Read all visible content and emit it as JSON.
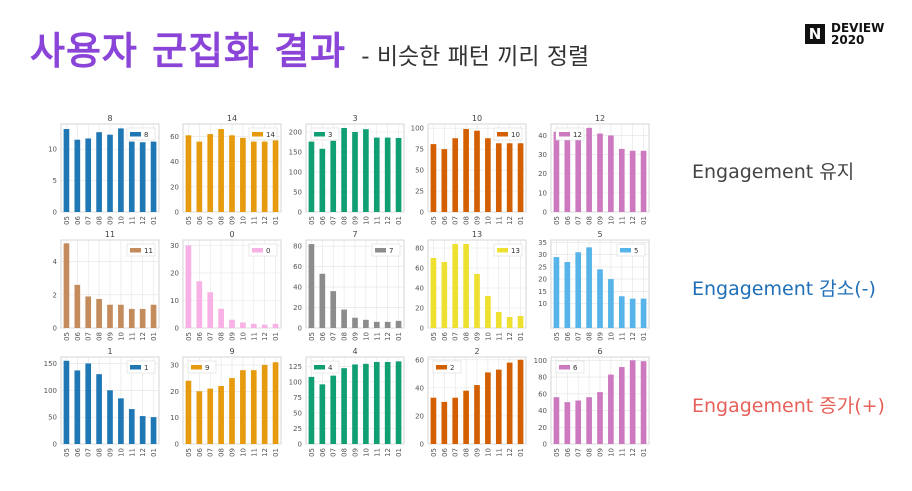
{
  "slide": {
    "title": "사용자 군집화 결과",
    "subtitle": "- 비슷한 패턴 끼리 정렬",
    "logo": {
      "mark": "N",
      "line1": "DEVIEW",
      "line2": "2020"
    },
    "row_labels": [
      {
        "text": "Engagement 유지",
        "color": "#444444"
      },
      {
        "text": "Engagement 감소(-)",
        "color": "#1f6fb8"
      },
      {
        "text": "Engagement 증가(+)",
        "color": "#e8605a"
      }
    ]
  },
  "chart_data": [
    {
      "type": "bar",
      "title": "8",
      "legend": "8",
      "color": "#1f77b4",
      "categories": [
        "05",
        "06",
        "07",
        "08",
        "09",
        "10",
        "11",
        "12",
        "01"
      ],
      "values": [
        13.2,
        11.5,
        11.7,
        12.7,
        12.3,
        13.3,
        11.2,
        11.1,
        11.2
      ],
      "yticks": [
        0,
        5,
        10
      ],
      "ylim": [
        0,
        14
      ]
    },
    {
      "type": "bar",
      "title": "14",
      "legend": "14",
      "color": "#e69a0d",
      "categories": [
        "05",
        "06",
        "07",
        "08",
        "09",
        "10",
        "11",
        "12",
        "01"
      ],
      "values": [
        61,
        56,
        62,
        66,
        61,
        59,
        56,
        56,
        57
      ],
      "yticks": [
        0,
        20,
        40,
        60
      ],
      "ylim": [
        0,
        70
      ]
    },
    {
      "type": "bar",
      "title": "3",
      "legend": "3",
      "color": "#109e73",
      "categories": [
        "05",
        "06",
        "07",
        "08",
        "09",
        "10",
        "11",
        "12",
        "01"
      ],
      "values": [
        176,
        158,
        178,
        210,
        200,
        207,
        186,
        186,
        185
      ],
      "yticks": [
        0,
        50,
        100,
        150,
        200
      ],
      "ylim": [
        0,
        220
      ]
    },
    {
      "type": "bar",
      "title": "10",
      "legend": "10",
      "color": "#d35f00",
      "categories": [
        "05",
        "06",
        "07",
        "08",
        "09",
        "10",
        "11",
        "12",
        "01"
      ],
      "values": [
        81,
        75,
        88,
        99,
        97,
        88,
        82,
        82,
        82
      ],
      "yticks": [
        0,
        25,
        50,
        75,
        100
      ],
      "ylim": [
        0,
        105
      ]
    },
    {
      "type": "bar",
      "title": "12",
      "legend": "12",
      "color": "#cc79c0",
      "categories": [
        "05",
        "06",
        "07",
        "08",
        "09",
        "10",
        "11",
        "12",
        "01"
      ],
      "values": [
        42,
        38,
        42,
        44,
        41,
        40,
        33,
        32,
        32
      ],
      "yticks": [
        0,
        10,
        20,
        30,
        40
      ],
      "ylim": [
        0,
        46
      ]
    },
    {
      "type": "bar",
      "title": "11",
      "legend": "11",
      "color": "#c48b5c",
      "categories": [
        "05",
        "06",
        "07",
        "08",
        "09",
        "10",
        "11",
        "12",
        "01"
      ],
      "values": [
        5.1,
        2.6,
        1.9,
        1.75,
        1.4,
        1.4,
        1.15,
        1.15,
        1.4
      ],
      "yticks": [
        0,
        2,
        4
      ],
      "ylim": [
        0,
        5.3
      ]
    },
    {
      "type": "bar",
      "title": "0",
      "legend": "0",
      "color": "#f7b1e5",
      "categories": [
        "05",
        "06",
        "07",
        "08",
        "09",
        "10",
        "11",
        "12",
        "01"
      ],
      "values": [
        30,
        17,
        13,
        7,
        3,
        2,
        1.5,
        1.2,
        1.5
      ],
      "yticks": [
        0,
        10,
        20,
        30
      ],
      "ylim": [
        0,
        32
      ]
    },
    {
      "type": "bar",
      "title": "7",
      "legend": "7",
      "color": "#8c8c8c",
      "categories": [
        "05",
        "06",
        "07",
        "08",
        "09",
        "10",
        "11",
        "12",
        "01"
      ],
      "values": [
        82,
        53,
        36,
        18,
        10,
        8,
        6,
        6,
        7
      ],
      "yticks": [
        0,
        20,
        40,
        60,
        80
      ],
      "ylim": [
        0,
        86
      ]
    },
    {
      "type": "bar",
      "title": "13",
      "legend": "13",
      "color": "#ede030",
      "categories": [
        "05",
        "06",
        "07",
        "08",
        "09",
        "10",
        "11",
        "12",
        "01"
      ],
      "values": [
        70,
        66,
        84,
        84,
        54,
        32,
        16,
        11,
        12
      ],
      "yticks": [
        0,
        20,
        40,
        60,
        80
      ],
      "ylim": [
        0,
        88
      ]
    },
    {
      "type": "bar",
      "title": "5",
      "legend": "5",
      "color": "#56b4e9",
      "categories": [
        "05",
        "06",
        "07",
        "08",
        "09",
        "10",
        "11",
        "12",
        "01"
      ],
      "values": [
        29,
        27,
        31,
        33,
        24,
        20,
        13,
        12,
        12
      ],
      "yticks": [
        10,
        15,
        20,
        25,
        30,
        35
      ],
      "ylim": [
        0,
        36
      ]
    },
    {
      "type": "bar",
      "title": "1",
      "legend": "1",
      "color": "#1f77b4",
      "categories": [
        "05",
        "06",
        "07",
        "08",
        "09",
        "10",
        "11",
        "12",
        "01"
      ],
      "values": [
        155,
        137,
        150,
        130,
        100,
        85,
        65,
        52,
        50
      ],
      "yticks": [
        0,
        50,
        100,
        150
      ],
      "ylim": [
        0,
        162
      ]
    },
    {
      "type": "bar",
      "title": "9",
      "legend": "9",
      "color": "#e69a0d",
      "categories": [
        "05",
        "06",
        "07",
        "08",
        "09",
        "10",
        "11",
        "12",
        "01"
      ],
      "values": [
        24,
        20,
        21,
        22,
        25,
        28,
        28,
        30,
        31
      ],
      "yticks": [
        0,
        10,
        20,
        30
      ],
      "ylim": [
        0,
        33
      ]
    },
    {
      "type": "bar",
      "title": "4",
      "legend": "4",
      "color": "#109e73",
      "categories": [
        "05",
        "06",
        "07",
        "08",
        "09",
        "10",
        "11",
        "12",
        "01"
      ],
      "values": [
        108,
        96,
        110,
        122,
        128,
        129,
        132,
        132,
        133
      ],
      "yticks": [
        0,
        25,
        50,
        75,
        100,
        125
      ],
      "ylim": [
        0,
        140
      ]
    },
    {
      "type": "bar",
      "title": "2",
      "legend": "2",
      "color": "#d35f00",
      "categories": [
        "05",
        "06",
        "07",
        "08",
        "09",
        "10",
        "11",
        "12",
        "01"
      ],
      "values": [
        33,
        30,
        33,
        38,
        42,
        51,
        53,
        58,
        60
      ],
      "yticks": [
        0,
        20,
        40,
        60
      ],
      "ylim": [
        0,
        62
      ]
    },
    {
      "type": "bar",
      "title": "6",
      "legend": "6",
      "color": "#cc79c0",
      "categories": [
        "05",
        "06",
        "07",
        "08",
        "09",
        "10",
        "11",
        "12",
        "01"
      ],
      "values": [
        56,
        50,
        52,
        56,
        62,
        83,
        92,
        100,
        99
      ],
      "yticks": [
        0,
        20,
        40,
        60,
        80,
        100
      ],
      "ylim": [
        0,
        104
      ]
    }
  ]
}
